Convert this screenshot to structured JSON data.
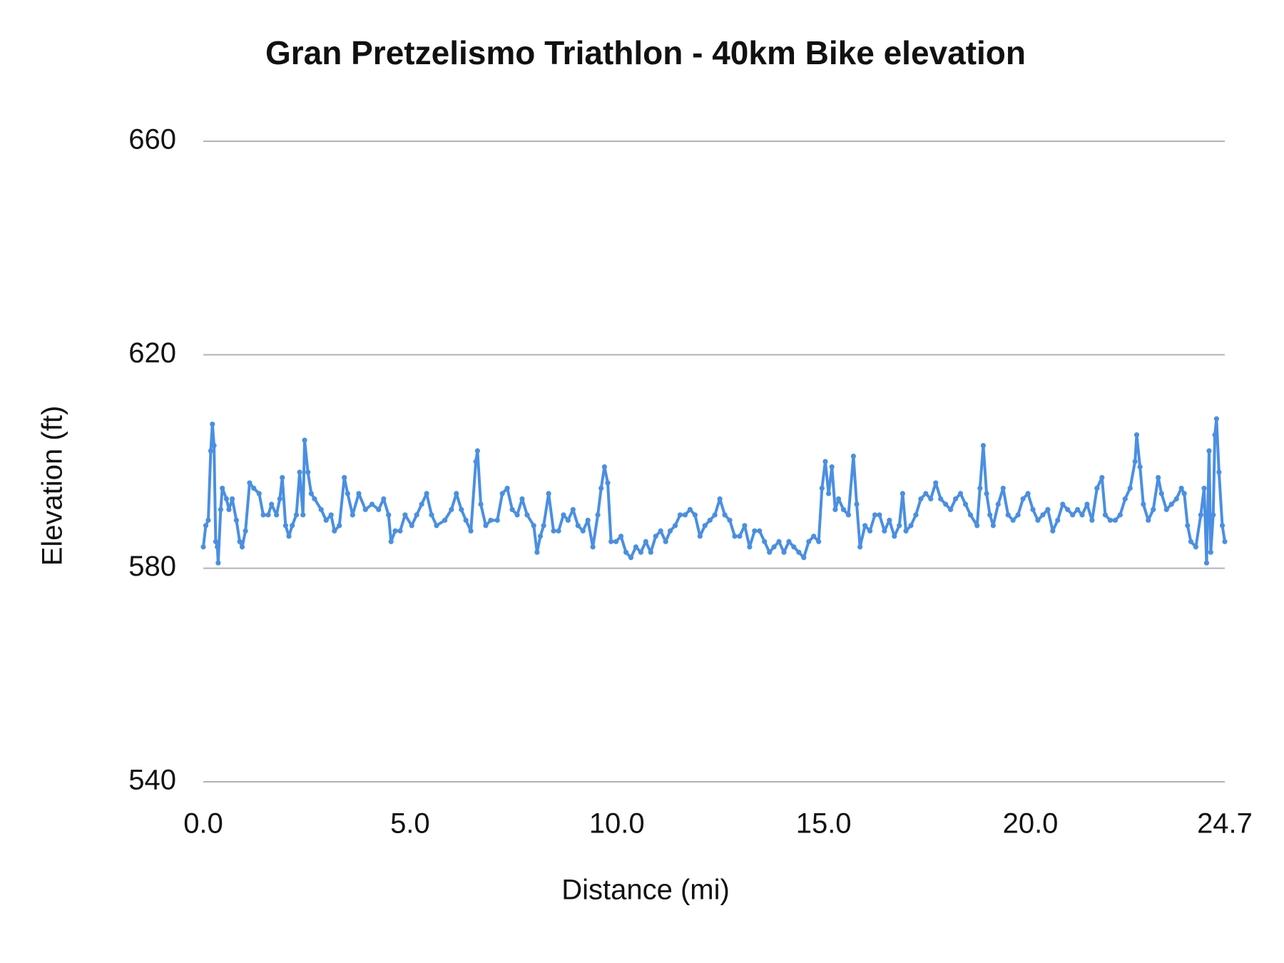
{
  "chart_data": {
    "type": "line",
    "title": "Gran Pretzelismo Triathlon - 40km Bike elevation",
    "x_label": "Distance (mi)",
    "y_label": "Elevation (ft)",
    "color": "#4a8fe2",
    "markers": true,
    "grid": true,
    "xlim": [
      0,
      24.7
    ],
    "xticks": [
      {
        "value": 0,
        "label": "0.0"
      },
      {
        "value": 5,
        "label": "5.0"
      },
      {
        "value": 10,
        "label": "10.0"
      },
      {
        "value": 15,
        "label": "15.0"
      },
      {
        "value": 20,
        "label": "20.0"
      },
      24.7
    ],
    "ylim": [
      540,
      660
    ],
    "yticks": [
      540,
      580,
      620,
      660
    ],
    "x": [
      0,
      0.06,
      0.12,
      0.18,
      0.22,
      0.26,
      0.3,
      0.34,
      0.36,
      0.42,
      0.46,
      0.56,
      0.62,
      0.7,
      0.8,
      0.88,
      0.94,
      1.02,
      1.12,
      1.22,
      1.35,
      1.45,
      1.57,
      1.65,
      1.77,
      1.85,
      1.91,
      1.99,
      2.07,
      2.15,
      2.25,
      2.33,
      2.41,
      2.45,
      2.53,
      2.61,
      2.69,
      2.85,
      2.97,
      3.09,
      3.17,
      3.29,
      3.41,
      3.49,
      3.61,
      3.76,
      3.92,
      4.08,
      4.24,
      4.36,
      4.48,
      4.54,
      4.64,
      4.76,
      4.88,
      5.04,
      5.16,
      5.28,
      5.4,
      5.52,
      5.64,
      5.84,
      6.0,
      6.12,
      6.24,
      6.35,
      6.47,
      6.59,
      6.63,
      6.71,
      6.83,
      6.95,
      7.11,
      7.23,
      7.35,
      7.47,
      7.59,
      7.71,
      7.83,
      7.99,
      8.07,
      8.15,
      8.23,
      8.35,
      8.47,
      8.59,
      8.71,
      8.82,
      8.94,
      9.06,
      9.18,
      9.3,
      9.42,
      9.54,
      9.62,
      9.7,
      9.78,
      9.86,
      9.98,
      10.1,
      10.22,
      10.34,
      10.46,
      10.58,
      10.7,
      10.82,
      10.94,
      11.06,
      11.18,
      11.29,
      11.41,
      11.53,
      11.65,
      11.77,
      11.89,
      12.01,
      12.13,
      12.25,
      12.37,
      12.49,
      12.61,
      12.73,
      12.85,
      12.97,
      13.09,
      13.21,
      13.33,
      13.45,
      13.57,
      13.69,
      13.8,
      13.92,
      14.04,
      14.16,
      14.28,
      14.4,
      14.52,
      14.64,
      14.76,
      14.88,
      14.96,
      15.04,
      15.12,
      15.2,
      15.28,
      15.36,
      15.48,
      15.6,
      15.72,
      15.8,
      15.88,
      16.0,
      16.12,
      16.24,
      16.35,
      16.47,
      16.59,
      16.71,
      16.83,
      16.91,
      16.99,
      17.11,
      17.23,
      17.35,
      17.47,
      17.59,
      17.71,
      17.83,
      17.95,
      18.07,
      18.19,
      18.31,
      18.43,
      18.55,
      18.71,
      18.78,
      18.86,
      18.94,
      19.02,
      19.1,
      19.22,
      19.34,
      19.46,
      19.58,
      19.7,
      19.82,
      19.94,
      20.06,
      20.18,
      20.3,
      20.42,
      20.54,
      20.66,
      20.78,
      20.9,
      21.02,
      21.14,
      21.25,
      21.37,
      21.49,
      21.61,
      21.73,
      21.81,
      21.93,
      22.05,
      22.17,
      22.29,
      22.41,
      22.53,
      22.57,
      22.65,
      22.73,
      22.85,
      22.97,
      23.09,
      23.17,
      23.29,
      23.41,
      23.53,
      23.65,
      23.72,
      23.8,
      23.88,
      24.0,
      24.12,
      24.2,
      24.26,
      24.32,
      24.36,
      24.42,
      24.46,
      24.5,
      24.56,
      24.64,
      24.7
    ],
    "values": [
      584,
      588,
      589,
      602,
      607,
      603,
      585,
      584,
      581,
      591,
      595,
      593,
      591,
      593,
      589,
      585,
      584,
      587,
      596,
      595,
      594,
      590,
      590,
      592,
      590,
      593,
      597,
      588,
      586,
      588,
      590,
      598,
      590,
      604,
      598,
      594,
      593,
      591,
      589,
      590,
      587,
      588,
      597,
      594,
      590,
      594,
      591,
      592,
      591,
      593,
      590,
      585,
      587,
      587,
      590,
      588,
      590,
      592,
      594,
      590,
      588,
      589,
      591,
      594,
      591,
      589,
      587,
      600,
      602,
      592,
      588,
      589,
      589,
      594,
      595,
      591,
      590,
      593,
      590,
      588,
      583,
      586,
      588,
      594,
      587,
      587,
      590,
      589,
      591,
      588,
      587,
      589,
      584,
      590,
      595,
      599,
      596,
      585,
      585,
      586,
      583,
      582,
      584,
      583,
      585,
      583,
      586,
      587,
      585,
      587,
      588,
      590,
      590,
      591,
      590,
      586,
      588,
      589,
      590,
      593,
      590,
      589,
      586,
      586,
      588,
      584,
      587,
      587,
      585,
      583,
      584,
      585,
      583,
      585,
      584,
      583,
      582,
      585,
      586,
      585,
      595,
      600,
      594,
      599,
      591,
      593,
      591,
      590,
      601,
      592,
      584,
      588,
      587,
      590,
      590,
      587,
      589,
      586,
      588,
      594,
      587,
      588,
      590,
      593,
      594,
      593,
      596,
      593,
      592,
      591,
      593,
      594,
      592,
      590,
      588,
      595,
      603,
      594,
      590,
      588,
      592,
      595,
      590,
      589,
      590,
      593,
      594,
      591,
      589,
      590,
      591,
      587,
      589,
      592,
      591,
      590,
      591,
      590,
      592,
      589,
      595,
      597,
      590,
      589,
      589,
      590,
      593,
      595,
      600,
      605,
      599,
      592,
      589,
      591,
      597,
      594,
      591,
      592,
      593,
      595,
      594,
      588,
      585,
      584,
      590,
      595,
      581,
      602,
      583,
      590,
      605,
      608,
      598,
      588,
      585
    ]
  }
}
